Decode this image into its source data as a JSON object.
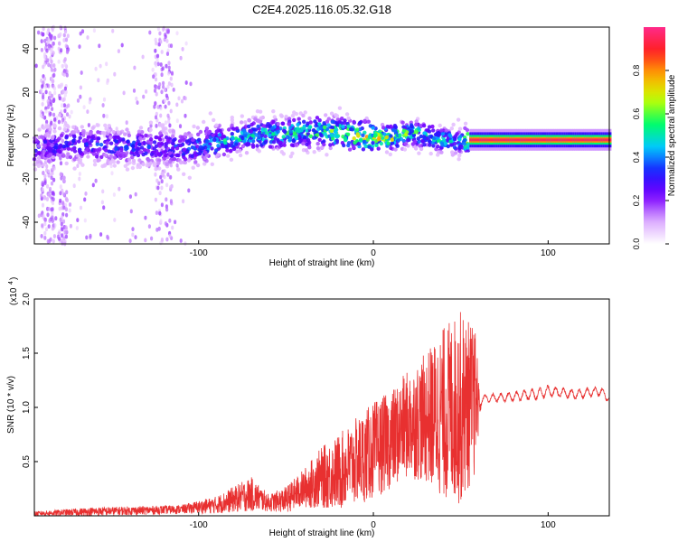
{
  "title": "C2E4.2025.116.05.32.G18",
  "chart_data": [
    {
      "type": "heatmap",
      "xlabel": "Height of straight line (km)",
      "ylabel": "Frequency (Hz)",
      "xlim": [
        -194,
        135
      ],
      "ylim": [
        -50,
        50
      ],
      "x_ticks": [
        -100,
        0,
        100
      ],
      "x_tick_labels": [
        "-100",
        "0",
        "100"
      ],
      "y_ticks": [
        -40,
        -20,
        0,
        20,
        40
      ],
      "y_tick_labels": [
        "-40",
        "-20",
        "0",
        "20",
        "40"
      ],
      "colorbar": {
        "label": "Normalized spectral amplitude",
        "range": [
          0,
          1
        ],
        "ticks": [
          0.0,
          0.2,
          0.4,
          0.6,
          0.8
        ],
        "tick_labels": [
          "0.0",
          "0.2",
          "0.4",
          "0.6",
          "0.8"
        ],
        "colors": [
          "#ffffff",
          "#d9a6ff",
          "#7a00ff",
          "#1a1aff",
          "#00c8ff",
          "#00ff66",
          "#c8ff00",
          "#ffaa00",
          "#ff2020",
          "#ff2a8a"
        ]
      },
      "ridge": {
        "description_points_x": [
          -194,
          -170,
          -150,
          -130,
          -110,
          -100,
          -90,
          -70,
          -50,
          -30,
          -10,
          0,
          10,
          20,
          30,
          40,
          50,
          55,
          70,
          100,
          135
        ],
        "center_frequency_hz": [
          -6,
          -4,
          -5,
          -5,
          -6,
          -5,
          -3,
          0,
          1,
          2,
          0,
          -1,
          -1,
          1,
          0,
          -2,
          -3,
          -2,
          -2,
          -2,
          -2
        ],
        "peak_amplitude": [
          0.3,
          0.35,
          0.35,
          0.35,
          0.35,
          0.4,
          0.5,
          0.5,
          0.55,
          0.6,
          0.7,
          0.75,
          0.7,
          0.6,
          0.55,
          0.5,
          0.45,
          0.9,
          0.95,
          0.95,
          0.9
        ]
      }
    },
    {
      "type": "line",
      "xlabel": "Height of straight line (km)",
      "ylabel": "SNR (10 * v/v)",
      "y_exponent_label": "(x10",
      "y_exponent_value": "4",
      "xlim": [
        -194,
        135
      ],
      "ylim": [
        0,
        20000
      ],
      "x_ticks": [
        -100,
        0,
        100
      ],
      "x_tick_labels": [
        "-100",
        "0",
        "100"
      ],
      "y_ticks": [
        5000,
        10000,
        15000,
        20000
      ],
      "y_tick_labels": [
        "0.5",
        "1.0",
        "1.5",
        "2.0"
      ],
      "color": "#e83030",
      "series_envelope": {
        "x": [
          -194,
          -160,
          -130,
          -110,
          -90,
          -70,
          -60,
          -50,
          -40,
          -30,
          -20,
          -10,
          0,
          10,
          20,
          30,
          40,
          50,
          58,
          62,
          80,
          95,
          100,
          115,
          130,
          135
        ],
        "mean": [
          200,
          400,
          500,
          600,
          1000,
          2000,
          1200,
          1500,
          2500,
          3500,
          4000,
          5000,
          6000,
          7000,
          8500,
          9000,
          9500,
          10000,
          10500,
          10800,
          11000,
          11300,
          11500,
          11200,
          11500,
          10800
        ],
        "spread": [
          200,
          400,
          400,
          400,
          800,
          1600,
          800,
          1200,
          1800,
          2800,
          3500,
          4000,
          4500,
          4500,
          5000,
          6000,
          8000,
          9000,
          7000,
          500,
          600,
          800,
          700,
          600,
          600,
          500
        ]
      }
    }
  ]
}
